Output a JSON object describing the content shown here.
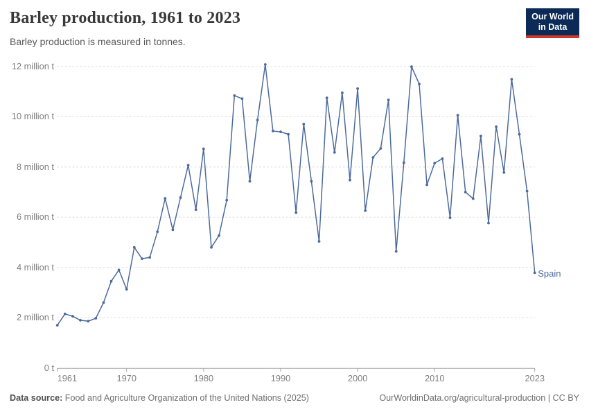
{
  "header": {
    "title": "Barley production, 1961 to 2023",
    "subtitle": "Barley production is measured in tonnes.",
    "logo": {
      "line1": "Our World",
      "line2": "in Data",
      "bg_color": "#0c2a56",
      "accent_color": "#d0382b"
    }
  },
  "chart_data": {
    "type": "line",
    "title": "Barley production, 1961 to 2023",
    "unit": "tonnes",
    "xlabel": "",
    "ylabel": "",
    "xlim": [
      1961,
      2023
    ],
    "ylim": [
      0,
      12400000
    ],
    "grid": "horizontal-dashed",
    "legend_position": "end-of-line-label",
    "x_ticks": [
      "1961",
      "1970",
      "1980",
      "1990",
      "2000",
      "2010",
      "2023"
    ],
    "y_ticks": [
      {
        "value": 0,
        "label": "0 t"
      },
      {
        "value": 2000000,
        "label": "2 million t"
      },
      {
        "value": 4000000,
        "label": "4 million t"
      },
      {
        "value": 6000000,
        "label": "6 million t"
      },
      {
        "value": 8000000,
        "label": "8 million t"
      },
      {
        "value": 10000000,
        "label": "10 million t"
      },
      {
        "value": 12000000,
        "label": "12 million t"
      }
    ],
    "series": [
      {
        "name": "Spain",
        "color": "#4c6a9c",
        "x": [
          1961,
          1962,
          1963,
          1964,
          1965,
          1966,
          1967,
          1968,
          1969,
          1970,
          1971,
          1972,
          1973,
          1974,
          1975,
          1976,
          1977,
          1978,
          1979,
          1980,
          1981,
          1982,
          1983,
          1984,
          1985,
          1986,
          1987,
          1988,
          1989,
          1990,
          1991,
          1992,
          1993,
          1994,
          1995,
          1996,
          1997,
          1998,
          1999,
          2000,
          2001,
          2002,
          2003,
          2004,
          2005,
          2006,
          2007,
          2008,
          2009,
          2010,
          2011,
          2012,
          2013,
          2014,
          2015,
          2016,
          2017,
          2018,
          2019,
          2020,
          2021,
          2022,
          2023
        ],
        "values": [
          1700000,
          2150000,
          2060000,
          1900000,
          1860000,
          1980000,
          2600000,
          3450000,
          3900000,
          3130000,
          4800000,
          4350000,
          4400000,
          5420000,
          6750000,
          5500000,
          6780000,
          8070000,
          6300000,
          8720000,
          4800000,
          5270000,
          6680000,
          10840000,
          10720000,
          7430000,
          9870000,
          12080000,
          9430000,
          9400000,
          9300000,
          6180000,
          9710000,
          7430000,
          5040000,
          10750000,
          8580000,
          10950000,
          7480000,
          11120000,
          6260000,
          8380000,
          8740000,
          10670000,
          4640000,
          8170000,
          11990000,
          11300000,
          7290000,
          8150000,
          8330000,
          5980000,
          10060000,
          7000000,
          6740000,
          9230000,
          5770000,
          9600000,
          7780000,
          11490000,
          9300000,
          7040000,
          3790000
        ]
      }
    ]
  },
  "footer": {
    "source_label": "Data source:",
    "source_text": " Food and Agriculture Organization of the United Nations (2025)",
    "credit": "OurWorldinData.org/agricultural-production | CC BY"
  },
  "colors": {
    "line": "#4c6a9c",
    "gridline": "#dadada",
    "axis": "#a8a8a8",
    "tick_text": "#7e7e7e"
  }
}
